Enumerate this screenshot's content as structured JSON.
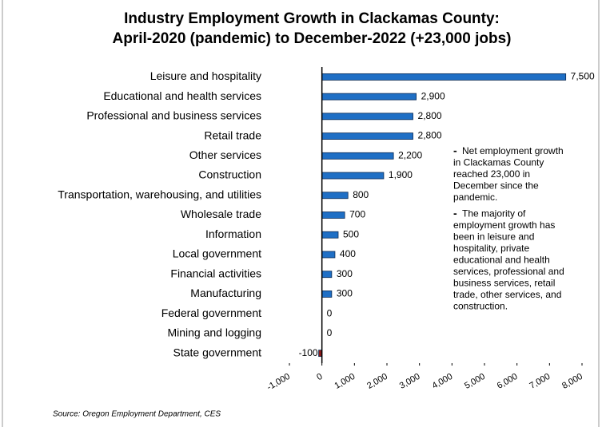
{
  "chart_data": {
    "type": "barh",
    "title": [
      "Industry Employment Growth in Clackamas County:",
      "April-2020 (pandemic) to December-2022 (+23,000 jobs)"
    ],
    "categories": [
      "Leisure and hospitality",
      "Educational and health services",
      "Professional and business services",
      "Retail trade",
      "Other services",
      "Construction",
      "Transportation, warehousing, and utilities",
      "Wholesale trade",
      "Information",
      "Local government",
      "Financial activities",
      "Manufacturing",
      "Federal government",
      "Mining and logging",
      "State government"
    ],
    "values": [
      7500,
      2900,
      2800,
      2800,
      2200,
      1900,
      800,
      700,
      500,
      400,
      300,
      300,
      0,
      0,
      -100
    ],
    "value_labels": [
      "7,500",
      "2,900",
      "2,800",
      "2,800",
      "2,200",
      "1,900",
      "800",
      "700",
      "500",
      "400",
      "300",
      "300",
      "0",
      "0",
      "-100"
    ],
    "color": "#1f6fc5",
    "negative_color": "#8b1a1a",
    "xlim": [
      -1000,
      8000
    ],
    "xticks": [
      {
        "value": -1000,
        "label": "-1,000"
      },
      0,
      {
        "value": 1000,
        "label": "1,000"
      },
      {
        "value": 2000,
        "label": "2,000"
      },
      {
        "value": 3000,
        "label": "3,000"
      },
      {
        "value": 4000,
        "label": "4,000"
      },
      {
        "value": 5000,
        "label": "5,000"
      },
      {
        "value": 6000,
        "label": "6,000"
      },
      {
        "value": 7000,
        "label": "7,000"
      },
      {
        "value": 8000,
        "label": "8,000"
      }
    ],
    "grid": false,
    "annotations": [
      [
        "Net employment growth",
        "in Clackamas County",
        "reached 23,000 in",
        "December since the",
        "pandemic."
      ],
      [
        "The majority of",
        "employment growth has",
        "been in leisure and",
        "hospitality, private",
        "educational and health",
        "services, professional and",
        "business services, retail",
        "trade, other services, and",
        "construction."
      ]
    ],
    "source": "Source: Oregon Employment Department, CES"
  }
}
